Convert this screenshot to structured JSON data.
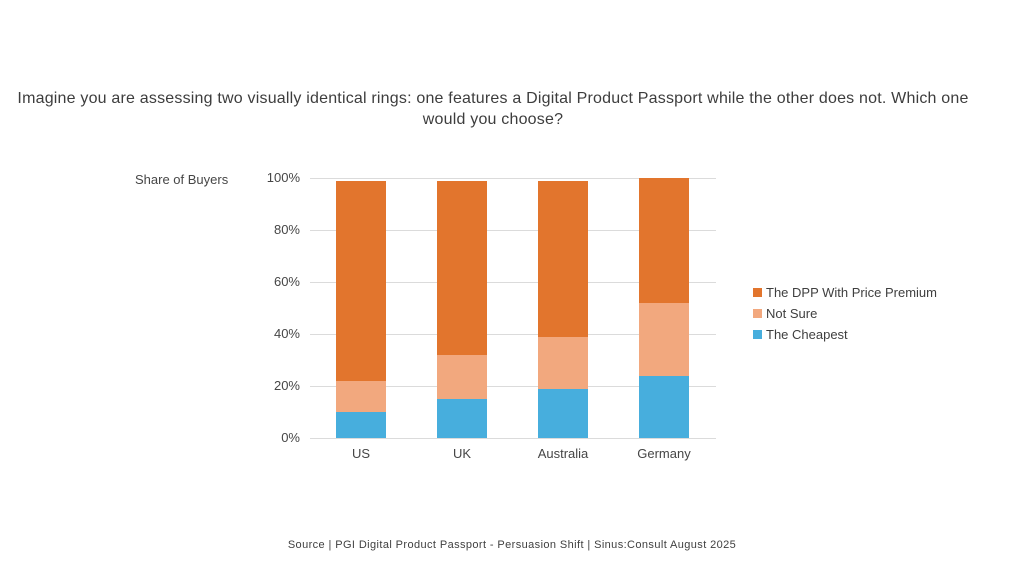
{
  "title": "Imagine you are assessing two visually identical rings: one features a Digital Product Passport while the other does not. Which one would you choose?",
  "y_axis_title": "Share of Buyers",
  "source": "Source | PGI Digital Product Passport  - Persuasion Shift | Sinus:Consult August 2025",
  "colors": {
    "dpp_orange": "#E2752D",
    "not_sure_peach": "#F2A87E",
    "cheapest_blue": "#47AEDD",
    "gridline": "#DBDBDB",
    "text": "#3F3F3F"
  },
  "chart_data": {
    "type": "bar",
    "stacked": true,
    "title": "Imagine you are assessing two visually identical rings: one features a Digital Product Passport while the other does not. Which one would you choose?",
    "xlabel": "",
    "ylabel": "Share of Buyers",
    "ylim": [
      0,
      100
    ],
    "grid": true,
    "legend_position": "right",
    "categories": [
      "US",
      "UK",
      "Australia",
      "Germany"
    ],
    "series": [
      {
        "name": "The Cheapest",
        "color": "#47AEDD",
        "values": [
          10,
          15,
          19,
          24
        ]
      },
      {
        "name": "Not Sure",
        "color": "#F2A87E",
        "values": [
          12,
          17,
          20,
          28
        ]
      },
      {
        "name": "The DPP With Price Premium",
        "color": "#E2752D",
        "values": [
          77,
          67,
          60,
          48
        ]
      }
    ],
    "stack_totals": [
      99,
      99,
      99,
      100
    ],
    "yticks": [
      {
        "value": 0,
        "label": "0%"
      },
      {
        "value": 20,
        "label": "20%"
      },
      {
        "value": 40,
        "label": "40%"
      },
      {
        "value": 60,
        "label": "60%"
      },
      {
        "value": 80,
        "label": "80%"
      },
      {
        "value": 100,
        "label": "100%"
      }
    ]
  }
}
